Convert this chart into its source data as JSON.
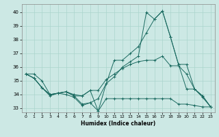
{
  "xlabel": "Humidex (Indice chaleur)",
  "bg_color": "#cce8e4",
  "grid_color": "#aad4cc",
  "line_color": "#1a6a60",
  "xlim": [
    -0.5,
    23.5
  ],
  "ylim": [
    32.7,
    40.6
  ],
  "yticks": [
    33,
    34,
    35,
    36,
    37,
    38,
    39,
    40
  ],
  "xticks": [
    0,
    1,
    2,
    3,
    4,
    5,
    6,
    7,
    8,
    9,
    10,
    11,
    12,
    13,
    14,
    15,
    16,
    17,
    18,
    19,
    20,
    21,
    22,
    23
  ],
  "lines": [
    [
      35.5,
      35.2,
      34.5,
      33.9,
      34.1,
      34.0,
      33.8,
      33.2,
      33.4,
      32.8,
      33.7,
      33.7,
      33.7,
      33.7,
      33.7,
      33.7,
      33.7,
      33.7,
      33.7,
      33.3,
      33.3,
      33.2,
      33.1,
      33.1
    ],
    [
      35.5,
      35.2,
      34.5,
      34.0,
      34.1,
      34.2,
      33.9,
      33.9,
      34.3,
      34.3,
      35.1,
      35.5,
      35.9,
      36.2,
      36.4,
      36.5,
      36.5,
      36.8,
      36.1,
      36.1,
      35.5,
      34.4,
      33.9,
      33.1
    ],
    [
      35.5,
      35.2,
      34.5,
      34.0,
      34.1,
      34.2,
      34.0,
      33.9,
      34.3,
      32.8,
      34.8,
      36.5,
      36.5,
      37.0,
      37.5,
      38.5,
      39.5,
      40.1,
      38.2,
      36.2,
      34.4,
      34.4,
      33.8,
      33.1
    ],
    [
      35.5,
      35.5,
      35.0,
      34.0,
      34.1,
      34.2,
      33.9,
      33.3,
      33.4,
      33.7,
      34.8,
      35.3,
      36.0,
      36.4,
      36.8,
      40.0,
      39.5,
      40.1,
      38.2,
      36.2,
      36.2,
      34.4,
      33.9,
      33.1
    ]
  ]
}
